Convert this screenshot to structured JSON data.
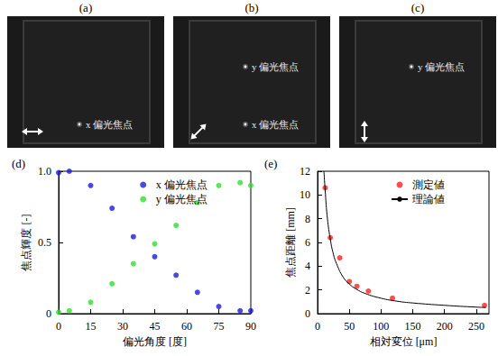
{
  "images": [
    {
      "panel": "(a)",
      "polarization_angle": 0,
      "labels": [
        "x 偏光焦点"
      ]
    },
    {
      "panel": "(b)",
      "polarization_angle": 45,
      "labels": [
        "y 偏光焦点",
        "x 偏光焦点"
      ]
    },
    {
      "panel": "(c)",
      "polarization_angle": 90,
      "labels": [
        "y 偏光焦点"
      ]
    }
  ],
  "chart_data": [
    {
      "panel": "(d)",
      "type": "scatter",
      "xlabel": "偏光角度 [度]",
      "ylabel": "焦点輝度 [-]",
      "xlim": [
        0,
        90
      ],
      "xticks": [
        0,
        15,
        30,
        45,
        60,
        75,
        90
      ],
      "ylim": [
        0,
        1
      ],
      "yticks": [
        0,
        0.5,
        {
          "value": 1,
          "label": "1.0"
        }
      ],
      "grid": false,
      "legend": "top",
      "x": [
        0,
        5,
        15,
        25,
        35,
        45,
        55,
        65,
        75,
        85,
        90
      ],
      "series": [
        {
          "name": "x 偏光焦点",
          "color": "#1c1cd8",
          "marker": "circle",
          "values": [
            0.99,
            1.0,
            0.9,
            0.74,
            0.54,
            0.4,
            0.27,
            0.15,
            0.05,
            0.02,
            0.02
          ]
        },
        {
          "name": "y 偏光焦点",
          "color": "#33dd33",
          "marker": "circle",
          "values": [
            0.01,
            0.02,
            0.08,
            0.21,
            0.35,
            0.49,
            0.62,
            0.78,
            0.9,
            0.92,
            0.9
          ]
        }
      ]
    },
    {
      "panel": "(e)",
      "type": "scatter",
      "xlabel": "相対変位 [μm]",
      "ylabel": "焦点距離 [mm]",
      "xlim": [
        0,
        270
      ],
      "xticks": [
        0,
        50,
        100,
        150,
        200,
        250
      ],
      "ylim": [
        0,
        12
      ],
      "yticks": [
        0,
        2,
        4,
        6,
        8,
        10,
        12
      ],
      "grid": false,
      "legend": "top",
      "series": [
        {
          "name": "測定値",
          "type": "scatter",
          "color": "#ff2020",
          "marker": "circle",
          "x": [
            12,
            20,
            35,
            50,
            62,
            80,
            118,
            263
          ],
          "values": [
            10.6,
            6.4,
            4.7,
            2.7,
            2.3,
            1.9,
            1.3,
            0.7
          ]
        },
        {
          "name": "理論値",
          "type": "line",
          "color": "#000000",
          "line_style": "solid",
          "x": [
            10,
            12,
            15,
            20,
            25,
            30,
            40,
            50,
            60,
            75,
            100,
            125,
            150,
            200,
            250,
            265
          ],
          "values": [
            12.0,
            10.4,
            8.3,
            6.3,
            5.0,
            4.2,
            3.1,
            2.5,
            2.1,
            1.7,
            1.3,
            1.05,
            0.9,
            0.7,
            0.55,
            0.52
          ]
        }
      ]
    }
  ]
}
